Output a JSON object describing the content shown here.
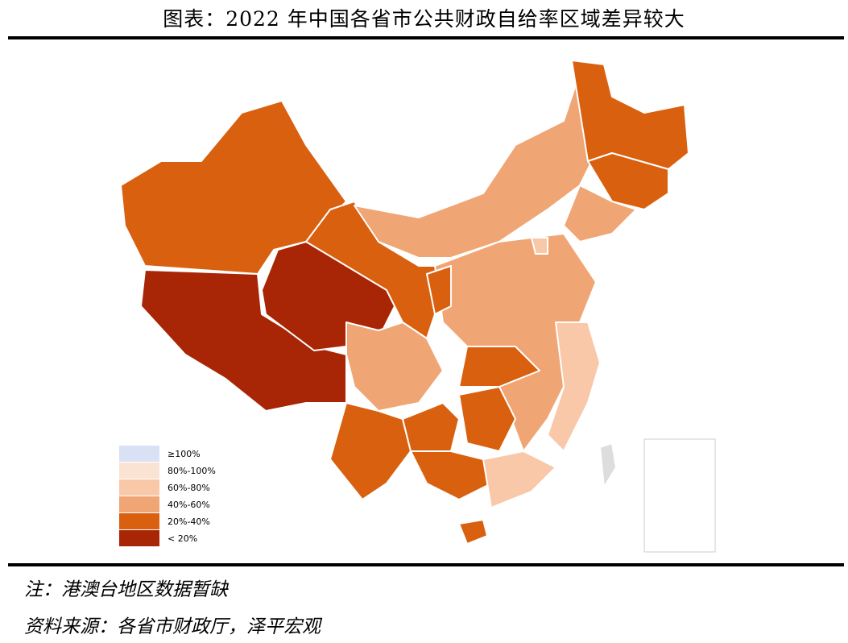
{
  "title": "图表：2022 年中国各省市公共财政自给率区域差异较大",
  "legend": [
    {
      "label": "≥100%",
      "color": "#d9e1f4"
    },
    {
      "label": "80%-100%",
      "color": "#fbe3d3"
    },
    {
      "label": "60%-80%",
      "color": "#f8c8a8"
    },
    {
      "label": "40%-60%",
      "color": "#f0a574"
    },
    {
      "label": "20%-40%",
      "color": "#d9600f"
    },
    {
      "label": "< 20%",
      "color": "#a82505"
    }
  ],
  "notes": [
    "注：港澳台地区数据暂缺",
    "资料来源：各省市财政厅，泽平宏观"
  ]
}
